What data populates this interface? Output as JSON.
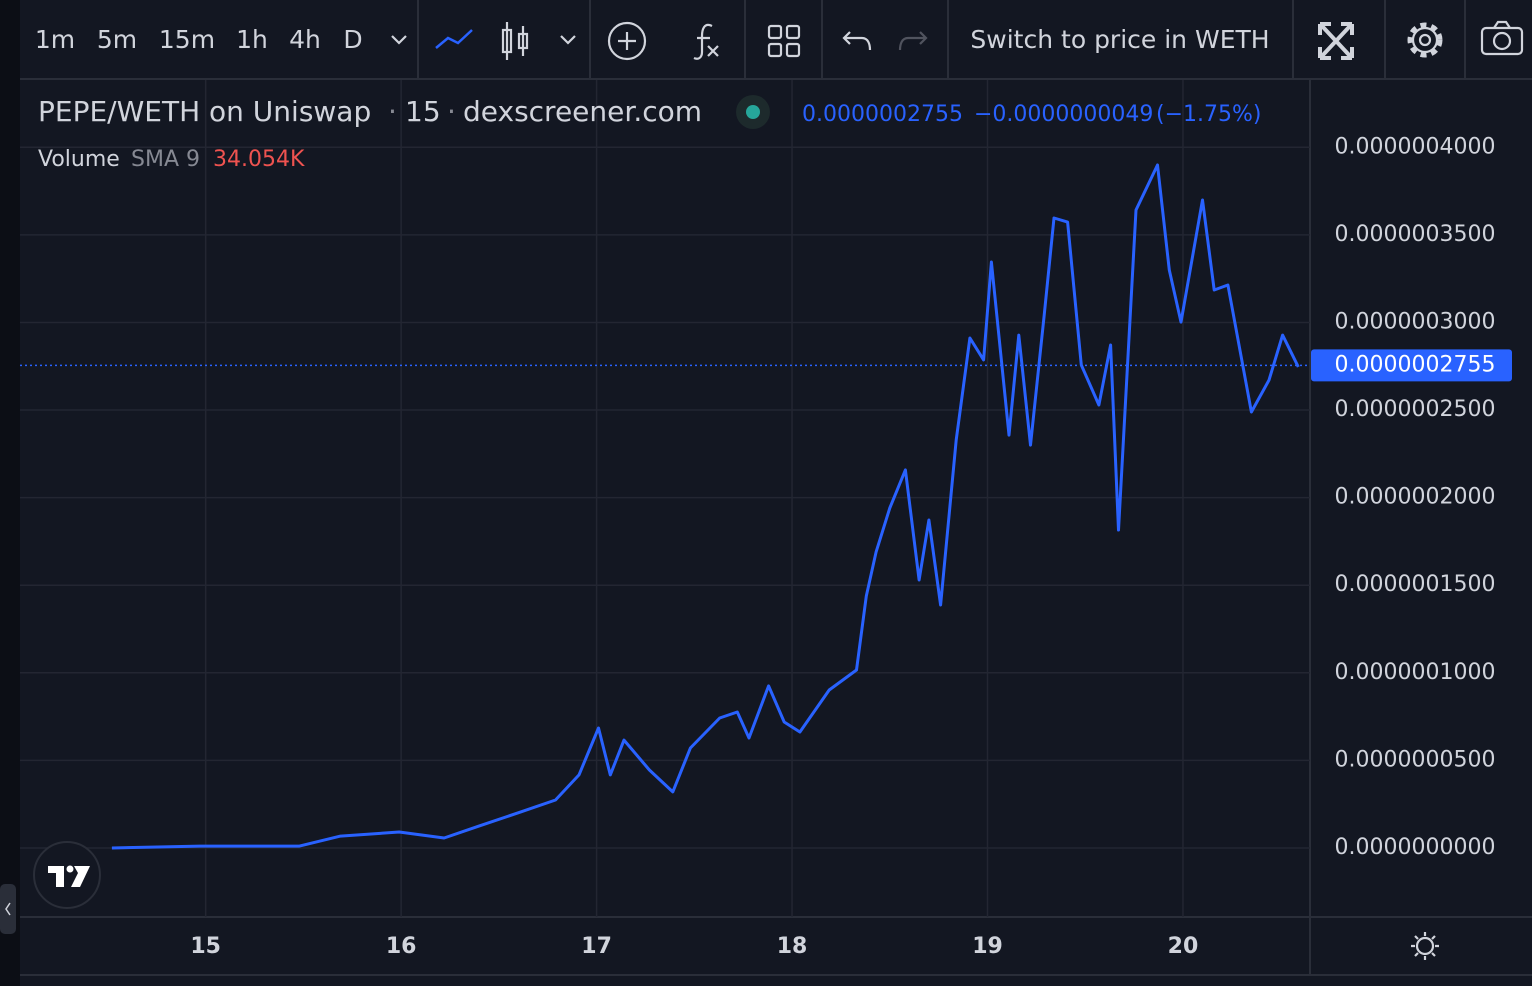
{
  "toolbar": {
    "intervals": [
      "1m",
      "5m",
      "15m",
      "1h",
      "4h",
      "D"
    ],
    "switch_label": "Switch to price in WETH"
  },
  "chart_data": {
    "type": "line",
    "title": "PEPE/WETH on Uniswap",
    "separator": "·",
    "interval": "15",
    "source": "dexscreener.com",
    "last_price": {
      "value": 2.755e-07,
      "label": "0.0000002755"
    },
    "change": "−0.0000000049",
    "change_percent": "(−1.75%)",
    "volume_label": "Volume",
    "volume_sma": "SMA 9",
    "volume_sma_value": "34.054K",
    "color": "#2962ff",
    "x": [
      14.52,
      14.97,
      15.48,
      15.69,
      15.99,
      16.22,
      16.4,
      16.61,
      16.79,
      16.91,
      17.01,
      17.07,
      17.14,
      17.27,
      17.39,
      17.48,
      17.63,
      17.72,
      17.78,
      17.88,
      17.96,
      18.04,
      18.19,
      18.33,
      18.38,
      18.43,
      18.5,
      18.58,
      18.65,
      18.7,
      18.76,
      18.84,
      18.91,
      18.98,
      19.02,
      19.11,
      19.16,
      19.22,
      19.29,
      19.34,
      19.41,
      19.48,
      19.57,
      19.63,
      19.67,
      19.76,
      19.87,
      19.93,
      19.99,
      20.1,
      20.16,
      20.23,
      20.35,
      20.44,
      20.51,
      20.59
    ],
    "values": [
      0,
      1.1e-09,
      1.1e-09,
      6.8e-09,
      9.1e-09,
      5.7e-09,
      1.26e-08,
      2.05e-08,
      2.74e-08,
      4.17e-08,
      6.85e-08,
      4.17e-08,
      6.16e-08,
      4.45e-08,
      3.2e-08,
      5.71e-08,
      7.42e-08,
      7.76e-08,
      6.28e-08,
      9.25e-08,
      7.19e-08,
      6.62e-08,
      9.02e-08,
      1.016e-07,
      1.438e-07,
      1.69e-07,
      1.941e-07,
      2.158e-07,
      1.53e-07,
      1.872e-07,
      1.387e-07,
      2.329e-07,
      2.911e-07,
      2.786e-07,
      3.345e-07,
      2.357e-07,
      2.928e-07,
      2.3e-07,
      3.042e-07,
      3.596e-07,
      3.573e-07,
      2.757e-07,
      2.529e-07,
      2.871e-07,
      1.815e-07,
      3.642e-07,
      3.899e-07,
      3.299e-07,
      3.002e-07,
      3.699e-07,
      3.185e-07,
      3.214e-07,
      2.489e-07,
      2.671e-07,
      2.928e-07,
      2.746e-07
    ],
    "xlim": [
      14.05,
      20.65
    ],
    "xticks": [
      15,
      16,
      17,
      18,
      19,
      20
    ],
    "ylim": [
      -3.94e-08,
      4.384e-07
    ],
    "yticks": [
      {
        "value": 0,
        "label": "0.0000000000"
      },
      {
        "value": 5e-08,
        "label": "0.0000000500"
      },
      {
        "value": 1e-07,
        "label": "0.0000001000"
      },
      {
        "value": 1.5e-07,
        "label": "0.0000001500"
      },
      {
        "value": 2e-07,
        "label": "0.0000002000"
      },
      {
        "value": 2.5e-07,
        "label": "0.0000002500"
      },
      {
        "value": 3e-07,
        "label": "0.0000003000"
      },
      {
        "value": 3.5e-07,
        "label": "0.0000003500"
      },
      {
        "value": 4e-07,
        "label": "0.0000004000"
      }
    ],
    "grid": true
  }
}
